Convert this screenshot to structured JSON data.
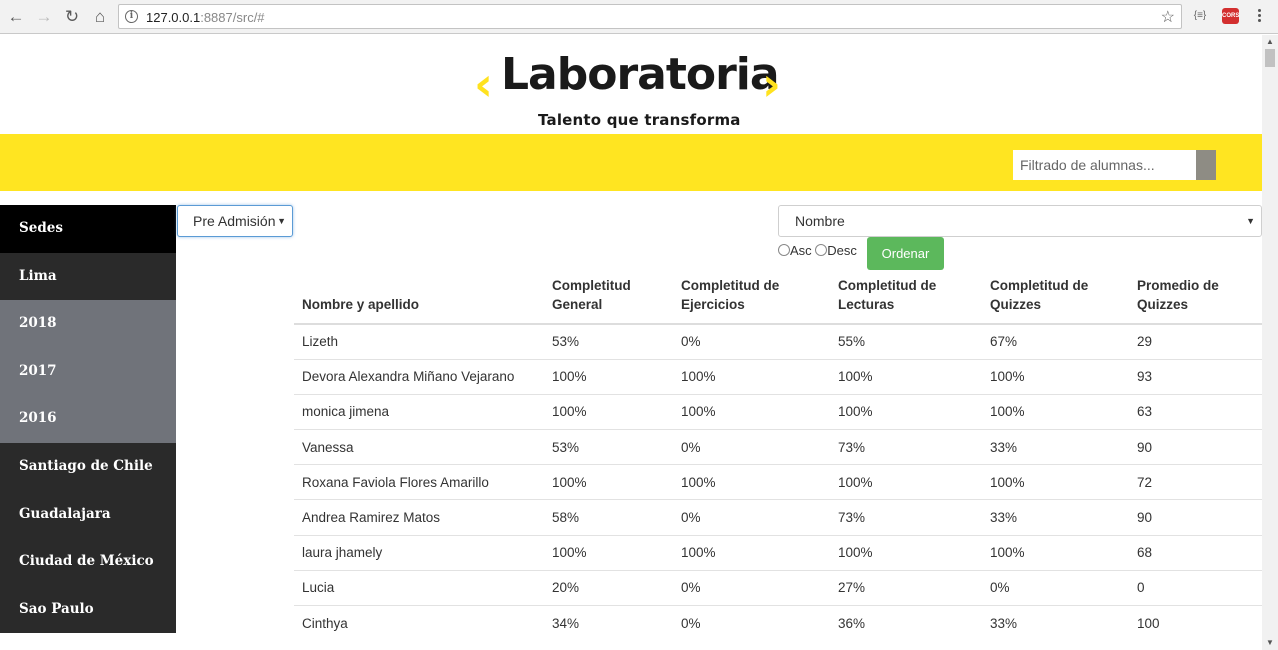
{
  "browser": {
    "url_host": "127.0.0.1",
    "url_rest": ":8887/src/#",
    "ext_json": "{≡}",
    "ext_cors": "CORS"
  },
  "header": {
    "brand": "Laboratoria",
    "tagline": "Talento que transforma",
    "accent_color": "#ffe521"
  },
  "filter": {
    "placeholder": "Filtrado de alumnas..."
  },
  "sidebar": {
    "items": [
      {
        "label": "Sedes"
      },
      {
        "label": "Lima"
      },
      {
        "label": "2018"
      },
      {
        "label": "2017"
      },
      {
        "label": "2016"
      },
      {
        "label": "Santiago de Chile"
      },
      {
        "label": "Guadalajara"
      },
      {
        "label": "Ciudad de México"
      },
      {
        "label": "Sao Paulo"
      }
    ]
  },
  "controls": {
    "cohort_select": "Pre Admisión",
    "order_select": "Nombre",
    "asc_label": "Asc",
    "desc_label": "Desc",
    "sort_button": "Ordenar"
  },
  "table": {
    "headers": [
      "Nombre y apellido",
      "Completitud General",
      "Completitud de Ejercicios",
      "Completitud de Lecturas",
      "Completitud de Quizzes",
      "Promedio de Quizzes"
    ],
    "rows": [
      [
        "Lizeth",
        "53%",
        "0%",
        "55%",
        "67%",
        "29"
      ],
      [
        "Devora Alexandra Miñano Vejarano",
        "100%",
        "100%",
        "100%",
        "100%",
        "93"
      ],
      [
        "monica jimena",
        "100%",
        "100%",
        "100%",
        "100%",
        "63"
      ],
      [
        "Vanessa",
        "53%",
        "0%",
        "73%",
        "33%",
        "90"
      ],
      [
        "Roxana Faviola Flores Amarillo",
        "100%",
        "100%",
        "100%",
        "100%",
        "72"
      ],
      [
        "Andrea Ramirez Matos",
        "58%",
        "0%",
        "73%",
        "33%",
        "90"
      ],
      [
        "laura jhamely",
        "100%",
        "100%",
        "100%",
        "100%",
        "68"
      ],
      [
        "Lucia",
        "20%",
        "0%",
        "27%",
        "0%",
        "0"
      ],
      [
        "Cinthya",
        "34%",
        "0%",
        "36%",
        "33%",
        "100"
      ]
    ]
  }
}
